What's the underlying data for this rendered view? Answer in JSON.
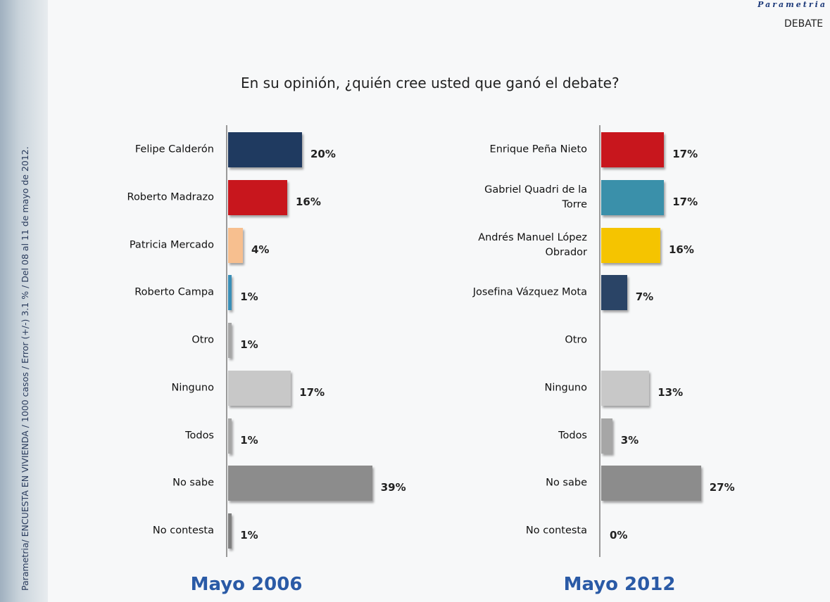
{
  "brand": "Parametria",
  "section": "DEBATE",
  "source_note": "Parametria/ ENCUESTA EN VIVIENDA / 1000 casos / Error (+/-) 3.1 % / Del 08 al 11 de mayo de 2012.",
  "title": "En su opinión, ¿quién cree usted que ganó el debate?",
  "chart_data": [
    {
      "type": "bar",
      "orientation": "horizontal",
      "title": "Mayo 2006",
      "categories": [
        "Felipe Calderón",
        "Roberto Madrazo",
        "Patricia Mercado",
        "Roberto Campa",
        "Otro",
        "Ninguno",
        "Todos",
        "No sabe",
        "No contesta"
      ],
      "values": [
        20,
        16,
        4,
        1,
        1,
        17,
        1,
        39,
        1
      ],
      "value_labels": [
        "20%",
        "16%",
        "4%",
        "1%",
        "1%",
        "17%",
        "1%",
        "39%",
        "1%"
      ],
      "colors": [
        "#1f3a60",
        "#c8161d",
        "#f7bf8f",
        "#3a8fb7",
        "#a6a6a6",
        "#c8c8c8",
        "#a6a6a6",
        "#8c8c8c",
        "#7f7f7f"
      ]
    },
    {
      "type": "bar",
      "orientation": "horizontal",
      "title": "Mayo 2012",
      "categories": [
        "Enrique Peña Nieto",
        "Gabriel Quadri de la Torre",
        "Andrés Manuel López Obrador",
        "Josefina Vázquez Mota",
        "Otro",
        "Ninguno",
        "Todos",
        "No sabe",
        "No contesta"
      ],
      "values": [
        17,
        17,
        16,
        7,
        null,
        13,
        3,
        27,
        0
      ],
      "value_labels": [
        "17%",
        "17%",
        "16%",
        "7%",
        null,
        "13%",
        "3%",
        "27%",
        "0%"
      ],
      "colors": [
        "#c8161d",
        "#3a90aa",
        "#f5c400",
        "#2a4466",
        null,
        "#c8c8c8",
        "#a6a6a6",
        "#8c8c8c",
        "#7f7f7f"
      ]
    }
  ]
}
